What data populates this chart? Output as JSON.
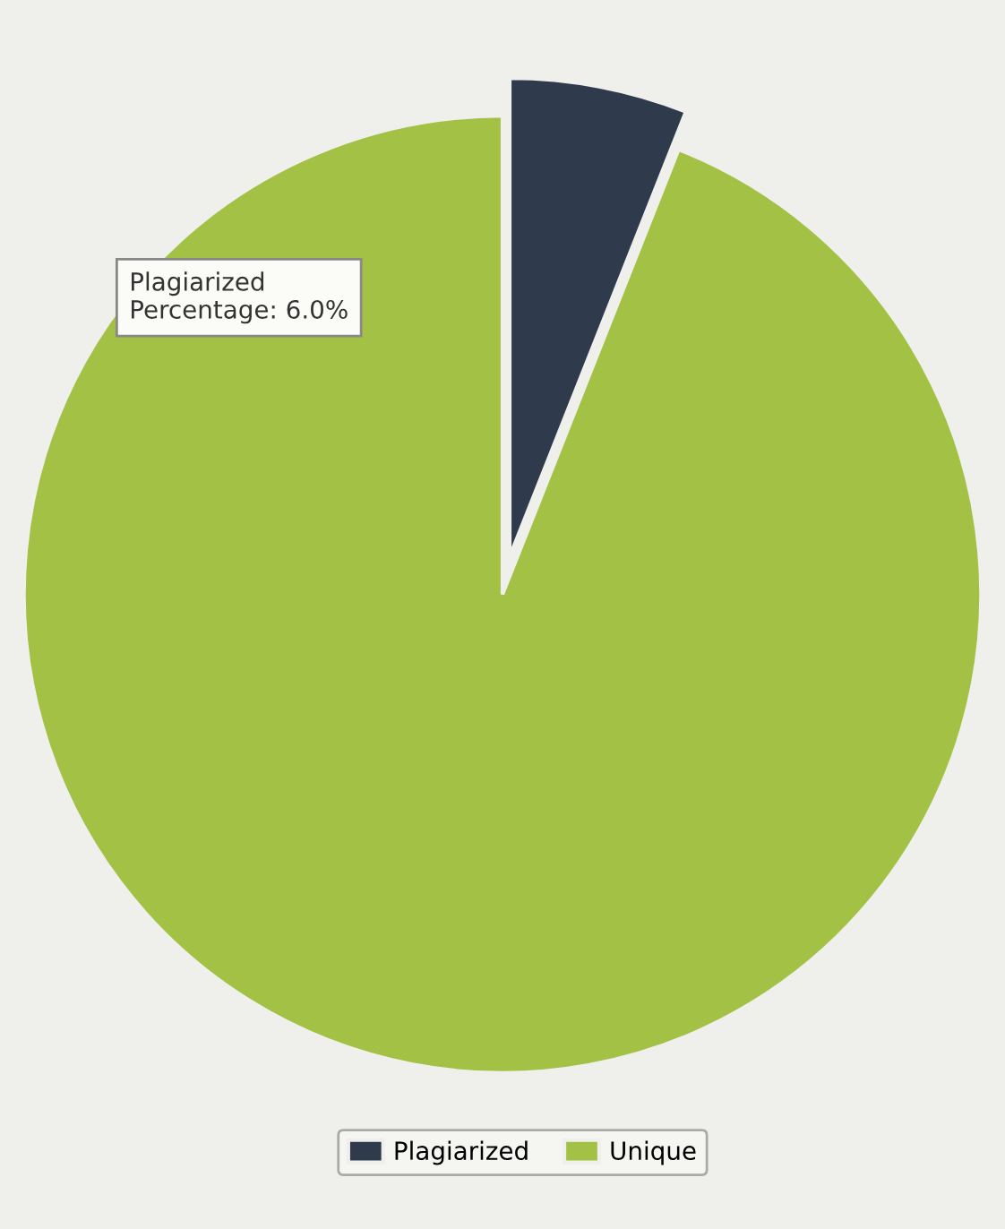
{
  "chart_data": {
    "type": "pie",
    "categories": [
      "Plagiarized",
      "Unique"
    ],
    "values": [
      6.0,
      94.0
    ],
    "colors": [
      "#2f3a4c",
      "#a3c145"
    ],
    "annotations": [
      "Plagiarized\nPercentage: 6.0%"
    ],
    "legend": "bottom"
  }
}
